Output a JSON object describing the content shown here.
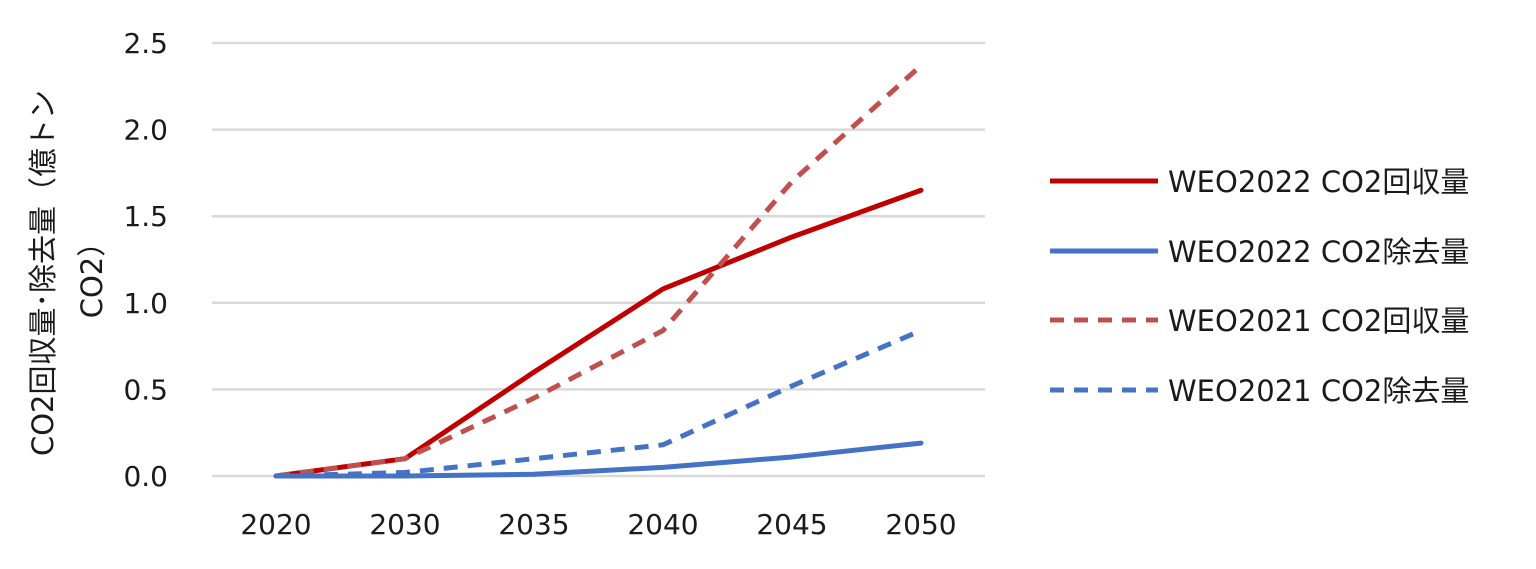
{
  "chart_data": {
    "type": "line",
    "title": "",
    "xlabel": "",
    "ylabel_line1": "CO2回収量･除去量（億トン",
    "ylabel_line2": "CO2）",
    "categories": [
      "2020",
      "2030",
      "2035",
      "2040",
      "2045",
      "2050"
    ],
    "ylim": [
      0,
      2.5
    ],
    "yticks": [
      "0.0",
      "0.5",
      "1.0",
      "1.5",
      "2.0",
      "2.5"
    ],
    "ytick_values": [
      0,
      0.5,
      1.0,
      1.5,
      2.0,
      2.5
    ],
    "grid": true,
    "legend_position": "right",
    "series": [
      {
        "name": "WEO2022 CO2回収量",
        "values": [
          0,
          0.1,
          0.6,
          1.08,
          1.38,
          1.65
        ],
        "color": "#c00000",
        "dashed": false
      },
      {
        "name": "WEO2022 CO2除去量",
        "values": [
          0,
          0.0,
          0.01,
          0.05,
          0.11,
          0.19
        ],
        "color": "#4472c4",
        "dashed": false
      },
      {
        "name": "WEO2021 CO2回収量",
        "values": [
          0,
          0.1,
          0.45,
          0.84,
          1.7,
          2.37
        ],
        "color": "#c0504d",
        "dashed": true
      },
      {
        "name": "WEO2021 CO2除去量",
        "values": [
          0,
          0.02,
          0.1,
          0.18,
          0.52,
          0.84
        ],
        "color": "#4472c4",
        "dashed": true
      }
    ]
  }
}
